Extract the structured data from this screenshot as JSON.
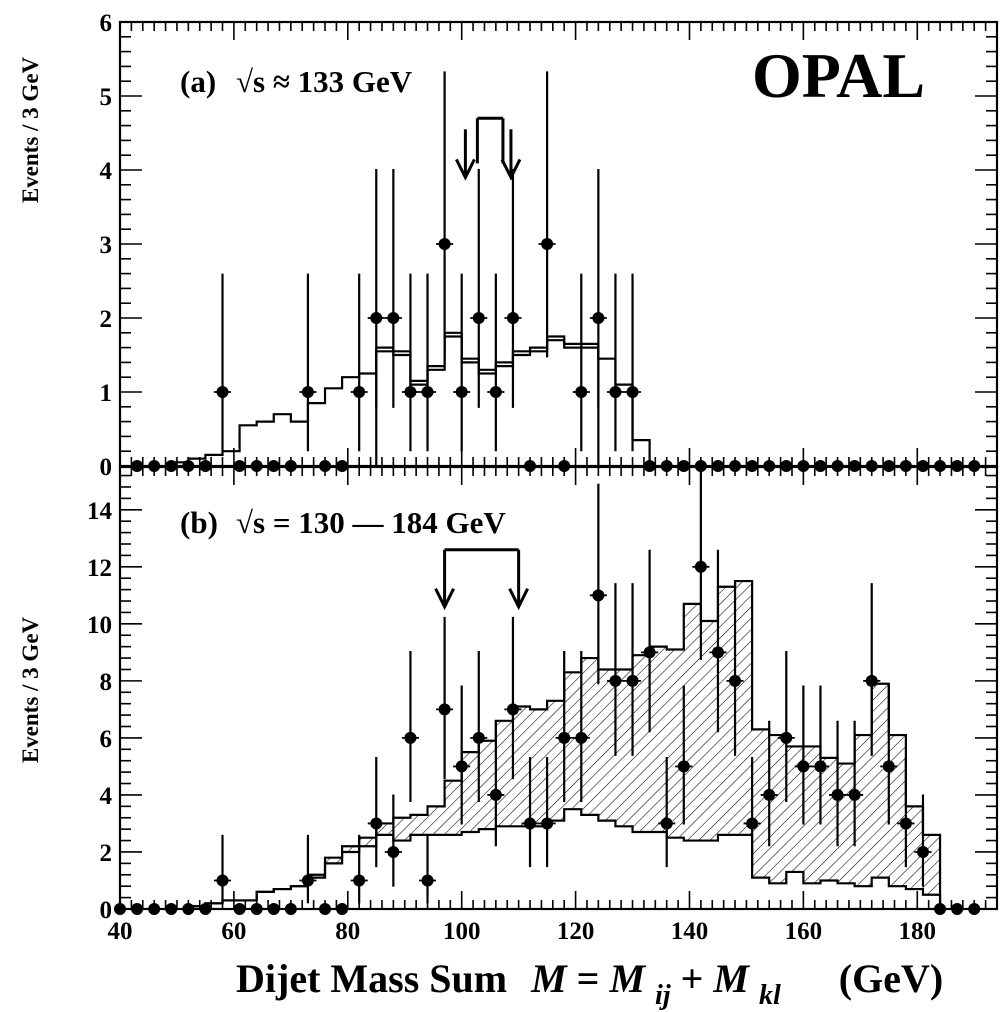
{
  "chart_data": [
    {
      "type": "histogram",
      "panel_label": "(a)",
      "energy_label": "√s ≈ 133 GeV",
      "experiment_label": "OPAL",
      "ylabel": "Events / 3 GeV",
      "xlim": [
        40,
        194
      ],
      "ylim": [
        0,
        6
      ],
      "x_ticks": [
        40,
        60,
        80,
        100,
        120,
        140,
        160,
        180
      ],
      "y_ticks": [
        0,
        1,
        2,
        3,
        4,
        5,
        6
      ],
      "bin_width_gev": 3,
      "mass_window_gev": [
        101,
        109
      ],
      "mc_hist_upper": {
        "edges": [
          49,
          52,
          55,
          58,
          61,
          64,
          67,
          70,
          73,
          76,
          79,
          82,
          85,
          88,
          91,
          94,
          97,
          100,
          103,
          106,
          109,
          112,
          115,
          118,
          121,
          124,
          127,
          130,
          133
        ],
        "values": [
          0.05,
          0.1,
          0.15,
          0.2,
          0.55,
          0.6,
          0.7,
          0.6,
          0.85,
          1.05,
          1.2,
          1.25,
          1.6,
          1.55,
          1.15,
          1.35,
          1.8,
          1.45,
          1.3,
          1.4,
          1.55,
          1.6,
          1.75,
          1.65,
          1.65,
          1.45,
          1.1,
          0.35
        ]
      },
      "mc_hist_lower": {
        "edges": [
          85,
          88,
          91,
          94,
          97,
          100,
          103,
          106,
          109,
          112,
          115,
          118,
          121,
          124
        ],
        "values": [
          1.55,
          1.5,
          1.1,
          1.3,
          1.75,
          1.4,
          1.25,
          1.35,
          1.5,
          1.55,
          1.7,
          1.6,
          1.6
        ]
      },
      "data_points": {
        "x": [
          43,
          46,
          49,
          52,
          55,
          58,
          61,
          64,
          67,
          70,
          73,
          76,
          79,
          82,
          85,
          88,
          91,
          94,
          97,
          100,
          103,
          106,
          109,
          112,
          115,
          118,
          121,
          124,
          127,
          130,
          133,
          136,
          139,
          142,
          145,
          148,
          151,
          154,
          157,
          160,
          163,
          166,
          169,
          172,
          175,
          178,
          181,
          184,
          187,
          190
        ],
        "y": [
          0,
          0,
          0,
          0,
          0,
          1,
          0,
          0,
          0,
          0,
          1,
          0,
          0,
          1,
          2,
          2,
          1,
          1,
          3,
          1,
          2,
          1,
          2,
          0,
          3,
          0,
          1,
          2,
          1,
          1,
          0,
          0,
          0,
          0,
          0,
          0,
          0,
          0,
          0,
          0,
          0,
          0,
          0,
          0,
          0,
          0,
          0,
          0,
          0,
          0
        ]
      }
    },
    {
      "type": "histogram",
      "panel_label": "(b)",
      "energy_label": "√s = 130 — 184 GeV",
      "xlabel": "Dijet Mass Sum",
      "xlabel_symbol": "M",
      "xlabel_eq": "=",
      "xlabel_m1": "M",
      "xlabel_sub1": "ij",
      "xlabel_plus": "+",
      "xlabel_m2": "M",
      "xlabel_sub2": "kl",
      "xlabel_unit": "(GeV)",
      "ylabel": "Events / 3 GeV",
      "xlim": [
        40,
        194
      ],
      "ylim": [
        0,
        15.5
      ],
      "x_ticks": [
        40,
        60,
        80,
        100,
        120,
        140,
        160,
        180
      ],
      "y_ticks": [
        0,
        2,
        4,
        6,
        8,
        10,
        12,
        14
      ],
      "bin_width_gev": 3,
      "mass_window_gev": [
        97,
        110
      ],
      "mc_hist_upper": {
        "edges": [
          52,
          55,
          58,
          61,
          64,
          67,
          70,
          73,
          76,
          79,
          82,
          85,
          88,
          91,
          94,
          97,
          100,
          103,
          106,
          109,
          112,
          115,
          118,
          121,
          124,
          127,
          130,
          133,
          136,
          139,
          142,
          145,
          148,
          151,
          154,
          157,
          160,
          163,
          166,
          169,
          172,
          175,
          178,
          181,
          184
        ],
        "values": [
          0.1,
          0.2,
          0.3,
          0.3,
          0.6,
          0.7,
          0.8,
          1.2,
          1.8,
          2.2,
          2.5,
          3.0,
          3.2,
          3.3,
          3.6,
          4.5,
          5.5,
          5.9,
          6.6,
          7.1,
          7.0,
          7.3,
          8.3,
          8.8,
          8.4,
          8.4,
          8.9,
          9.2,
          9.1,
          10.7,
          10.1,
          11.3,
          11.5,
          6.3,
          6.1,
          5.7,
          5.7,
          5.3,
          5.1,
          6.1,
          7.9,
          6.1,
          3.6,
          2.6
        ]
      },
      "mc_hist_lower": {
        "edges": [
          52,
          55,
          58,
          61,
          64,
          67,
          70,
          73,
          76,
          79,
          82,
          85,
          88,
          91,
          94,
          97,
          100,
          103,
          106,
          109,
          112,
          115,
          118,
          121,
          124,
          127,
          130,
          133,
          136,
          139,
          142,
          145,
          148,
          151,
          154,
          157,
          160,
          163,
          166,
          169,
          172,
          175,
          178,
          181,
          184
        ],
        "values": [
          0.1,
          0.2,
          0.3,
          0.3,
          0.6,
          0.7,
          0.8,
          1.1,
          1.6,
          2.0,
          2.2,
          2.6,
          2.4,
          2.6,
          2.6,
          2.6,
          2.7,
          2.8,
          2.9,
          2.9,
          2.9,
          3.1,
          3.5,
          3.3,
          3.1,
          2.9,
          2.7,
          2.7,
          2.5,
          2.4,
          2.4,
          2.6,
          2.6,
          1.1,
          0.9,
          1.3,
          0.9,
          1.0,
          0.9,
          0.8,
          1.1,
          0.8,
          0.7,
          0.5
        ]
      },
      "data_points": {
        "x": [
          40,
          43,
          46,
          49,
          52,
          55,
          58,
          61,
          64,
          67,
          70,
          73,
          76,
          79,
          82,
          85,
          88,
          91,
          94,
          97,
          100,
          103,
          106,
          109,
          112,
          115,
          118,
          121,
          124,
          127,
          130,
          133,
          136,
          139,
          142,
          145,
          148,
          151,
          154,
          157,
          160,
          163,
          166,
          169,
          172,
          175,
          178,
          181,
          184,
          187,
          190
        ],
        "y": [
          0,
          0,
          0,
          0,
          0,
          0,
          1,
          0,
          0,
          0,
          0,
          1,
          0,
          0,
          1,
          3,
          2,
          6,
          1,
          7,
          5,
          6,
          4,
          7,
          3,
          3,
          6,
          6,
          11,
          8,
          8,
          9,
          3,
          5,
          12,
          9,
          8,
          3,
          4,
          6,
          5,
          5,
          4,
          4,
          8,
          5,
          3,
          2,
          0,
          0,
          0
        ]
      }
    }
  ]
}
